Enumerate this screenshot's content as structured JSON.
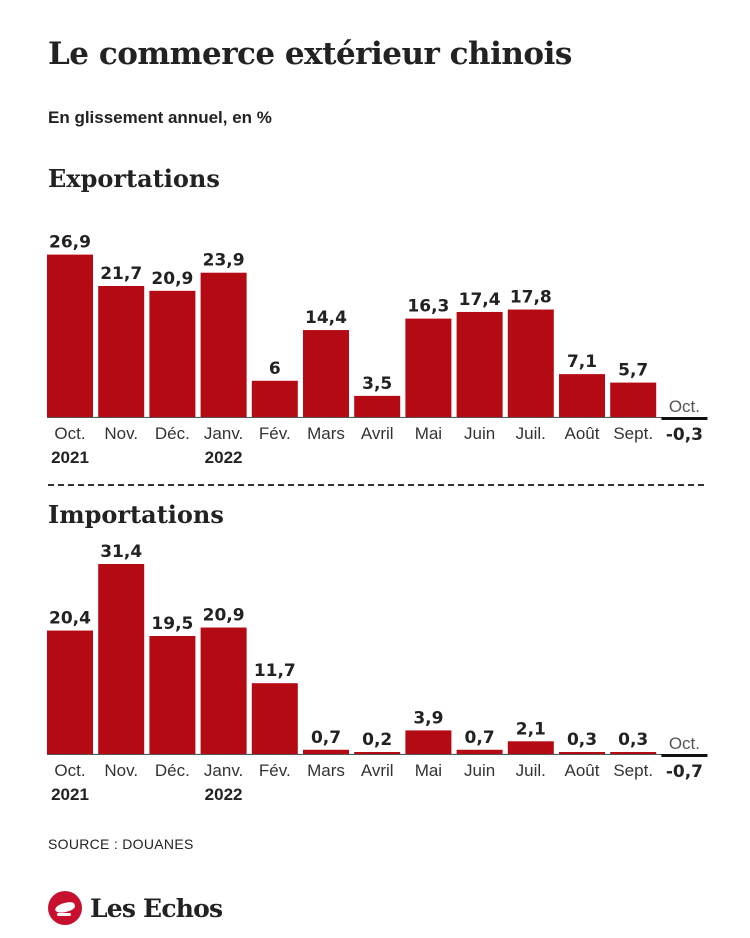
{
  "title": "Le commerce extérieur chinois",
  "subtitle": "En glissement annuel, en %",
  "source": "SOURCE : DOUANES",
  "logo": {
    "text": "Les Echos",
    "icon": "les-echos-logo-icon"
  },
  "colors": {
    "bar": "#b40a14",
    "text": "#222222",
    "axis": "#111111",
    "logo": "#c8102e"
  },
  "chart_data": [
    {
      "type": "bar",
      "title": "Exportations",
      "categories": [
        "Oct.",
        "Nov.",
        "Déc.",
        "Janv.",
        "Fév.",
        "Mars",
        "Avril",
        "Mai",
        "Juin",
        "Juil.",
        "Août",
        "Sept.",
        "Oct."
      ],
      "year_labels": [
        "2021",
        "",
        "",
        "2022",
        "",
        "",
        "",
        "",
        "",
        "",
        "",
        "",
        ""
      ],
      "values": [
        26.9,
        21.7,
        20.9,
        23.9,
        6,
        14.4,
        3.5,
        16.3,
        17.4,
        17.8,
        7.1,
        5.7,
        -0.3
      ],
      "value_labels": [
        "26,9",
        "21,7",
        "20,9",
        "23,9",
        "6",
        "14,4",
        "3,5",
        "16,3",
        "17,4",
        "17,8",
        "7,1",
        "5,7",
        "-0,3"
      ],
      "ylim": [
        0,
        27
      ]
    },
    {
      "type": "bar",
      "title": "Importations",
      "categories": [
        "Oct.",
        "Nov.",
        "Déc.",
        "Janv.",
        "Fév.",
        "Mars",
        "Avril",
        "Mai",
        "Juin",
        "Juil.",
        "Août",
        "Sept.",
        "Oct."
      ],
      "year_labels": [
        "2021",
        "",
        "",
        "2022",
        "",
        "",
        "",
        "",
        "",
        "",
        "",
        "",
        ""
      ],
      "values": [
        20.4,
        31.4,
        19.5,
        20.9,
        11.7,
        0.7,
        0.2,
        3.9,
        0.7,
        2.1,
        0.3,
        0.3,
        -0.7
      ],
      "value_labels": [
        "20,4",
        "31,4",
        "19,5",
        "20,9",
        "11,7",
        "0,7",
        "0,2",
        "3,9",
        "0,7",
        "2,1",
        "0,3",
        "0,3",
        "-0,7"
      ],
      "ylim": [
        0,
        31.4
      ]
    }
  ]
}
